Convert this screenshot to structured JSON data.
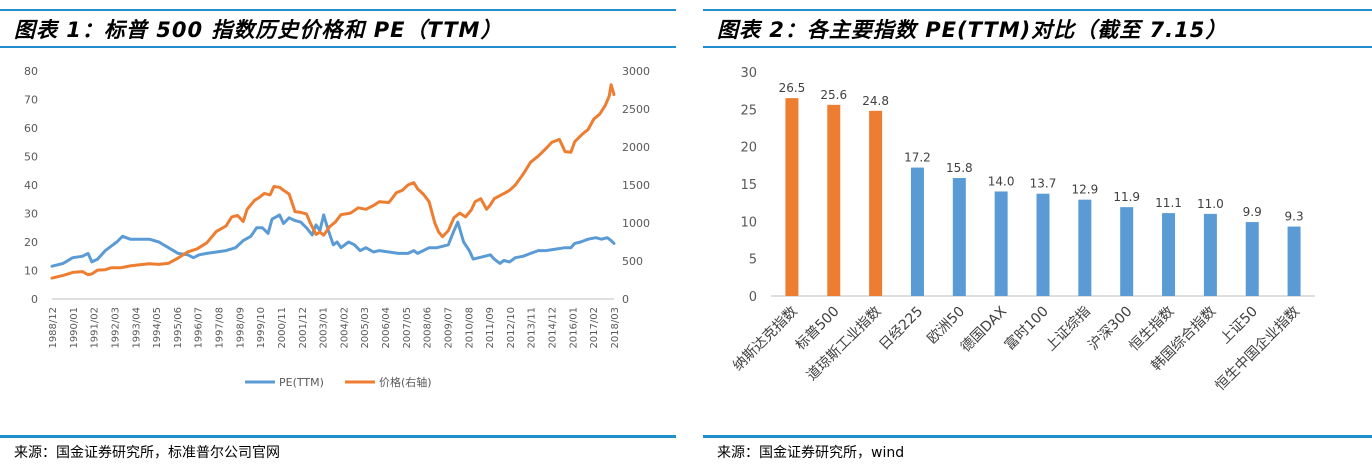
{
  "chart_data": [
    {
      "type": "line",
      "title": "图表 1：标普 500 指数历史价格和 PE（TTM）",
      "source": "来源：国金证券研究所，标准普尔公司官网",
      "x_ticks": [
        "1988/12",
        "1990/01",
        "1991/02",
        "1992/03",
        "1993/04",
        "1994/05",
        "1995/06",
        "1996/07",
        "1997/08",
        "1998/09",
        "1999/10",
        "2000/11",
        "2001/12",
        "2003/01",
        "2004/02",
        "2005/03",
        "2006/04",
        "2007/05",
        "2008/06",
        "2009/07",
        "2010/08",
        "2011/09",
        "2012/10",
        "2013/11",
        "2014/12",
        "2016/01",
        "2017/02",
        "2018/03"
      ],
      "y_left_ticks": [
        "0",
        "10",
        "20",
        "30",
        "40",
        "50",
        "60",
        "70",
        "80"
      ],
      "y_right_ticks": [
        "0",
        "500",
        "1000",
        "1500",
        "2000",
        "2500",
        "3000"
      ],
      "ylim_left": [
        0,
        80
      ],
      "ylim_right": [
        0,
        3000
      ],
      "x_range": [
        1988.92,
        2018.25
      ],
      "legend_position": "bottom",
      "grid": false,
      "series": [
        {
          "name": "PE(TTM)",
          "axis": "left",
          "color": "#5b9bd5",
          "points": [
            [
              1988.92,
              11.5
            ],
            [
              1989.5,
              12.5
            ],
            [
              1990.0,
              14.5
            ],
            [
              1990.5,
              15
            ],
            [
              1990.8,
              16
            ],
            [
              1991.0,
              13
            ],
            [
              1991.3,
              14
            ],
            [
              1991.7,
              17
            ],
            [
              1992.0,
              18.5
            ],
            [
              1992.3,
              20
            ],
            [
              1992.6,
              22
            ],
            [
              1993.0,
              21
            ],
            [
              1993.5,
              21
            ],
            [
              1994.0,
              21
            ],
            [
              1994.5,
              20
            ],
            [
              1995.0,
              18
            ],
            [
              1995.5,
              16
            ],
            [
              1996.0,
              15.5
            ],
            [
              1996.3,
              14.5
            ],
            [
              1996.6,
              15.5
            ],
            [
              1997.0,
              16
            ],
            [
              1997.5,
              16.5
            ],
            [
              1998.0,
              17
            ],
            [
              1998.5,
              18
            ],
            [
              1998.9,
              20.5
            ],
            [
              1999.3,
              22
            ],
            [
              1999.6,
              25
            ],
            [
              1999.9,
              25
            ],
            [
              2000.2,
              23
            ],
            [
              2000.4,
              28
            ],
            [
              2000.8,
              29.5
            ],
            [
              2001.0,
              26.5
            ],
            [
              2001.3,
              28.5
            ],
            [
              2001.6,
              27.5
            ],
            [
              2001.9,
              27
            ],
            [
              2002.2,
              25
            ],
            [
              2002.5,
              22.5
            ],
            [
              2002.7,
              26
            ],
            [
              2002.9,
              24
            ],
            [
              2003.1,
              29.5
            ],
            [
              2003.3,
              25
            ],
            [
              2003.6,
              19
            ],
            [
              2003.8,
              20
            ],
            [
              2004.0,
              18
            ],
            [
              2004.4,
              20
            ],
            [
              2004.7,
              19
            ],
            [
              2005.0,
              17
            ],
            [
              2005.3,
              18
            ],
            [
              2005.7,
              16.5
            ],
            [
              2006.0,
              17
            ],
            [
              2006.5,
              16.5
            ],
            [
              2007.0,
              16
            ],
            [
              2007.5,
              16
            ],
            [
              2007.8,
              17
            ],
            [
              2008.0,
              16
            ],
            [
              2008.3,
              17
            ],
            [
              2008.6,
              18
            ],
            [
              2009.0,
              18
            ],
            [
              2009.3,
              18.5
            ],
            [
              2009.6,
              19
            ],
            [
              2009.9,
              24
            ],
            [
              2010.1,
              27
            ],
            [
              2010.4,
              20
            ],
            [
              2010.7,
              17
            ],
            [
              2010.9,
              14
            ],
            [
              2011.2,
              14.5
            ],
            [
              2011.5,
              15
            ],
            [
              2011.8,
              15.5
            ],
            [
              2012.0,
              14
            ],
            [
              2012.3,
              12.5
            ],
            [
              2012.5,
              13.5
            ],
            [
              2012.8,
              13
            ],
            [
              2013.1,
              14.5
            ],
            [
              2013.5,
              15
            ],
            [
              2013.9,
              16
            ],
            [
              2014.3,
              17
            ],
            [
              2014.7,
              17
            ],
            [
              2015.2,
              17.5
            ],
            [
              2015.7,
              18
            ],
            [
              2016.0,
              18
            ],
            [
              2016.2,
              19.5
            ],
            [
              2016.5,
              20
            ],
            [
              2016.9,
              21
            ],
            [
              2017.3,
              21.5
            ],
            [
              2017.6,
              21
            ],
            [
              2017.9,
              21.5
            ],
            [
              2018.1,
              20.5
            ],
            [
              2018.25,
              19.5
            ]
          ]
        },
        {
          "name": "价格(右轴)",
          "axis": "right",
          "color": "#ed7d31",
          "points": [
            [
              1988.92,
              275
            ],
            [
              1989.5,
              310
            ],
            [
              1990.0,
              350
            ],
            [
              1990.5,
              360
            ],
            [
              1990.8,
              320
            ],
            [
              1991.0,
              330
            ],
            [
              1991.3,
              380
            ],
            [
              1991.7,
              385
            ],
            [
              1992.0,
              410
            ],
            [
              1992.5,
              410
            ],
            [
              1993.0,
              435
            ],
            [
              1993.5,
              450
            ],
            [
              1994.0,
              465
            ],
            [
              1994.5,
              455
            ],
            [
              1995.0,
              470
            ],
            [
              1995.5,
              540
            ],
            [
              1996.0,
              620
            ],
            [
              1996.5,
              660
            ],
            [
              1997.0,
              740
            ],
            [
              1997.5,
              890
            ],
            [
              1998.0,
              960
            ],
            [
              1998.3,
              1080
            ],
            [
              1998.6,
              1100
            ],
            [
              1998.9,
              1020
            ],
            [
              1999.1,
              1180
            ],
            [
              1999.5,
              1300
            ],
            [
              1999.7,
              1330
            ],
            [
              2000.0,
              1390
            ],
            [
              2000.3,
              1370
            ],
            [
              2000.5,
              1480
            ],
            [
              2000.8,
              1470
            ],
            [
              2001.0,
              1430
            ],
            [
              2001.3,
              1380
            ],
            [
              2001.6,
              1150
            ],
            [
              2001.9,
              1140
            ],
            [
              2002.2,
              1120
            ],
            [
              2002.4,
              1000
            ],
            [
              2002.7,
              850
            ],
            [
              2002.9,
              880
            ],
            [
              2003.1,
              840
            ],
            [
              2003.4,
              950
            ],
            [
              2003.7,
              1010
            ],
            [
              2004.0,
              1110
            ],
            [
              2004.5,
              1130
            ],
            [
              2004.9,
              1200
            ],
            [
              2005.3,
              1180
            ],
            [
              2005.7,
              1230
            ],
            [
              2006.0,
              1280
            ],
            [
              2006.5,
              1270
            ],
            [
              2006.9,
              1400
            ],
            [
              2007.2,
              1430
            ],
            [
              2007.5,
              1500
            ],
            [
              2007.8,
              1530
            ],
            [
              2008.0,
              1450
            ],
            [
              2008.3,
              1380
            ],
            [
              2008.6,
              1280
            ],
            [
              2008.9,
              1000
            ],
            [
              2009.1,
              880
            ],
            [
              2009.3,
              820
            ],
            [
              2009.6,
              900
            ],
            [
              2009.9,
              1070
            ],
            [
              2010.2,
              1130
            ],
            [
              2010.5,
              1080
            ],
            [
              2010.8,
              1170
            ],
            [
              2011.0,
              1280
            ],
            [
              2011.3,
              1320
            ],
            [
              2011.6,
              1180
            ],
            [
              2011.8,
              1240
            ],
            [
              2012.0,
              1320
            ],
            [
              2012.3,
              1360
            ],
            [
              2012.6,
              1400
            ],
            [
              2012.8,
              1430
            ],
            [
              2013.1,
              1500
            ],
            [
              2013.5,
              1640
            ],
            [
              2013.9,
              1800
            ],
            [
              2014.3,
              1880
            ],
            [
              2014.7,
              1980
            ],
            [
              2015.0,
              2060
            ],
            [
              2015.4,
              2100
            ],
            [
              2015.7,
              1940
            ],
            [
              2016.0,
              1930
            ],
            [
              2016.2,
              2070
            ],
            [
              2016.6,
              2170
            ],
            [
              2016.9,
              2230
            ],
            [
              2017.2,
              2370
            ],
            [
              2017.5,
              2430
            ],
            [
              2017.8,
              2550
            ],
            [
              2018.0,
              2670
            ],
            [
              2018.1,
              2820
            ],
            [
              2018.25,
              2690
            ]
          ]
        }
      ]
    },
    {
      "type": "bar",
      "title": "图表 2：各主要指数 PE(TTM)对比（截至 7.15）",
      "source": "来源：国金证券研究所，wind",
      "categories": [
        "纳斯达克指数",
        "标普500",
        "道琼斯工业指数",
        "日经225",
        "欧洲50",
        "德国DAX",
        "富时100",
        "上证综指",
        "沪深300",
        "恒生指数",
        "韩国综合指数",
        "上证50",
        "恒生中国企业指数"
      ],
      "values": [
        26.5,
        25.6,
        24.8,
        17.2,
        15.8,
        14.0,
        13.7,
        12.9,
        11.9,
        11.1,
        11.0,
        9.9,
        9.3
      ],
      "value_labels": [
        "26.5",
        "25.6",
        "24.8",
        "17.2",
        "15.8",
        "14.0",
        "13.7",
        "12.9",
        "11.9",
        "11.1",
        "11.0",
        "9.9",
        "9.3"
      ],
      "bar_colors": [
        "#ed7d31",
        "#ed7d31",
        "#ed7d31",
        "#5b9bd5",
        "#5b9bd5",
        "#5b9bd5",
        "#5b9bd5",
        "#5b9bd5",
        "#5b9bd5",
        "#5b9bd5",
        "#5b9bd5",
        "#5b9bd5",
        "#5b9bd5"
      ],
      "y_ticks": [
        "0",
        "5",
        "10",
        "15",
        "20",
        "25",
        "30"
      ],
      "ylim": [
        0,
        30
      ],
      "grid": false
    }
  ]
}
